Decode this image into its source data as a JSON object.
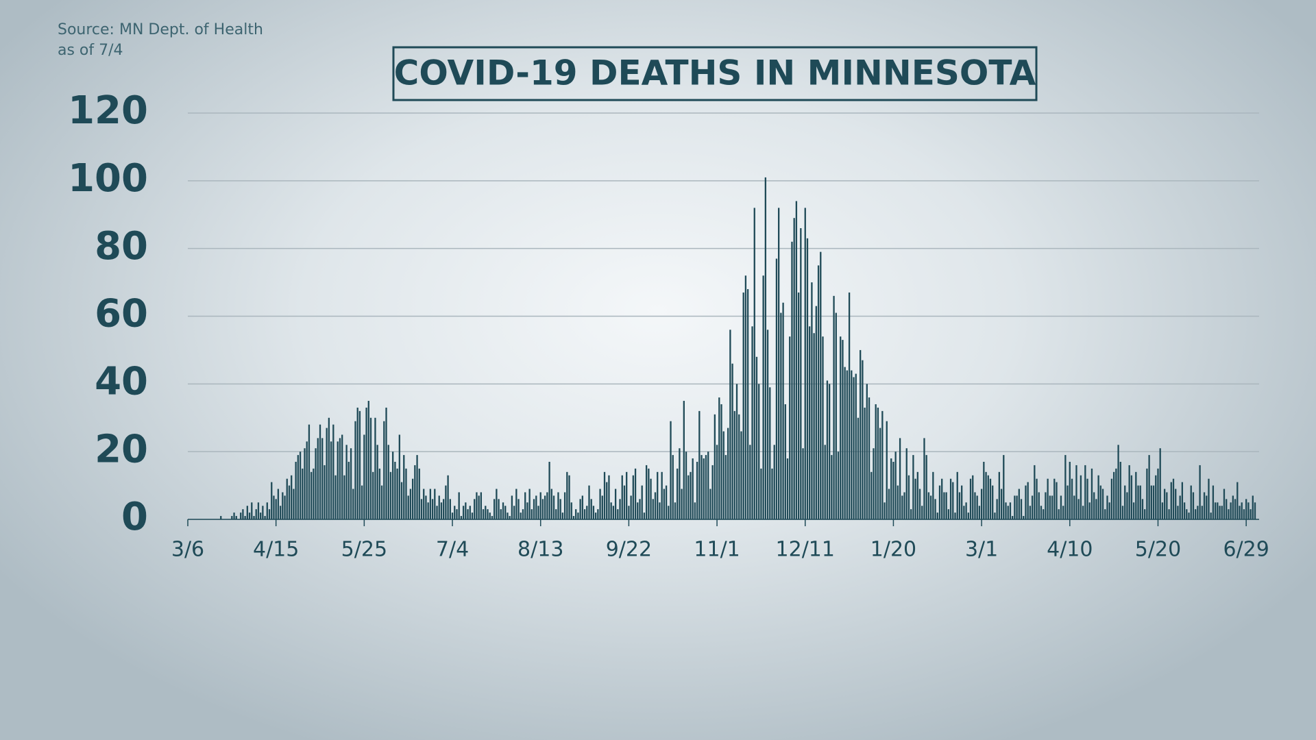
{
  "chart_data": {
    "type": "bar",
    "title": "COVID-19 DEATHS IN MINNESOTA",
    "source": "Source: MN Dept. of Health",
    "as_of": "as of 7/4",
    "color": "#1f4a57",
    "grid": true,
    "ylim": [
      0,
      120
    ],
    "yticks": [
      0,
      20,
      40,
      60,
      80,
      100,
      120
    ],
    "categories": [
      "3/6",
      null,
      null,
      null,
      null,
      null,
      null,
      null,
      null,
      null,
      null,
      null,
      null,
      null,
      null,
      null,
      null,
      null,
      null,
      null,
      null,
      null,
      null,
      null,
      null,
      null,
      null,
      null,
      null,
      null,
      null,
      null,
      null,
      null,
      null,
      null,
      null,
      null,
      null,
      null,
      "4/15",
      null,
      null,
      null,
      null,
      null,
      null,
      null,
      null,
      null,
      null,
      null,
      null,
      null,
      null,
      null,
      null,
      null,
      null,
      null,
      null,
      null,
      null,
      null,
      null,
      null,
      null,
      null,
      null,
      null,
      null,
      null,
      null,
      null,
      null,
      null,
      null,
      null,
      null,
      null,
      "5/25",
      null,
      null,
      null,
      null,
      null,
      null,
      null,
      null,
      null,
      null,
      null,
      null,
      null,
      null,
      null,
      null,
      null,
      null,
      null,
      null,
      null,
      null,
      null,
      null,
      null,
      null,
      null,
      null,
      null,
      null,
      null,
      null,
      null,
      null,
      null,
      null,
      null,
      null,
      null,
      "7/4",
      null,
      null,
      null,
      null,
      null,
      null,
      null,
      null,
      null,
      null,
      null,
      null,
      null,
      null,
      null,
      null,
      null,
      null,
      null,
      null,
      null,
      null,
      null,
      null,
      null,
      null,
      null,
      null,
      null,
      null,
      null,
      null,
      null,
      null,
      null,
      null,
      null,
      null,
      null,
      "8/13",
      null,
      null,
      null,
      null,
      null,
      null,
      null,
      null,
      null,
      null,
      null,
      null,
      null,
      null,
      null,
      null,
      null,
      null,
      null,
      null,
      null,
      null,
      null,
      null,
      null,
      null,
      null,
      null,
      null,
      null,
      null,
      null,
      null,
      null,
      null,
      null,
      null,
      null,
      null,
      "9/22",
      null,
      null,
      null,
      null,
      null,
      null,
      null,
      null,
      null,
      null,
      null,
      null,
      null,
      null,
      null,
      null,
      null,
      null,
      null,
      null,
      null,
      null,
      null,
      null,
      null,
      null,
      null,
      null,
      null,
      null,
      null,
      null,
      null,
      null,
      null,
      null,
      null,
      null,
      null,
      "11/1",
      null,
      null,
      null,
      null,
      null,
      null,
      null,
      null,
      null,
      null,
      null,
      null,
      null,
      null,
      null,
      null,
      null,
      null,
      null,
      null,
      null,
      null,
      null,
      null,
      null,
      null,
      null,
      null,
      null,
      null,
      null,
      null,
      null,
      null,
      null,
      null,
      null,
      null,
      null,
      "12/11",
      null,
      null,
      null,
      null,
      null,
      null,
      null,
      null,
      null,
      null,
      null,
      null,
      null,
      null,
      null,
      null,
      null,
      null,
      null,
      null,
      null,
      null,
      null,
      null,
      null,
      null,
      null,
      null,
      null,
      null,
      null,
      null,
      null,
      null,
      null,
      null,
      null,
      null,
      null,
      "1/20",
      null,
      null,
      null,
      null,
      null,
      null,
      null,
      null,
      null,
      null,
      null,
      null,
      null,
      null,
      null,
      null,
      null,
      null,
      null,
      null,
      null,
      null,
      null,
      null,
      null,
      null,
      null,
      null,
      null,
      null,
      null,
      null,
      null,
      null,
      null,
      null,
      null,
      null,
      null,
      "3/1",
      null,
      null,
      null,
      null,
      null,
      null,
      null,
      null,
      null,
      null,
      null,
      null,
      null,
      null,
      null,
      null,
      null,
      null,
      null,
      null,
      null,
      null,
      null,
      null,
      null,
      null,
      null,
      null,
      null,
      null,
      null,
      null,
      null,
      null,
      null,
      null,
      null,
      null,
      null,
      "4/10",
      null,
      null,
      null,
      null,
      null,
      null,
      null,
      null,
      null,
      null,
      null,
      null,
      null,
      null,
      null,
      null,
      null,
      null,
      null,
      null,
      null,
      null,
      null,
      null,
      null,
      null,
      null,
      null,
      null,
      null,
      null,
      null,
      null,
      null,
      null,
      null,
      null,
      null,
      null,
      "5/20",
      null,
      null,
      null,
      null,
      null,
      null,
      null,
      null,
      null,
      null,
      null,
      null,
      null,
      null,
      null,
      null,
      null,
      null,
      null,
      null,
      null,
      null,
      null,
      null,
      null,
      null,
      null,
      null,
      null,
      null,
      null,
      null,
      null,
      null,
      null,
      null,
      null,
      null,
      null,
      "6/29",
      null,
      null,
      null,
      null
    ],
    "values": [
      0,
      0,
      0,
      0,
      0,
      0,
      0,
      0,
      0,
      0,
      0,
      0,
      0,
      0,
      0,
      1,
      0,
      0,
      0,
      0,
      1,
      2,
      1,
      0,
      2,
      3,
      1,
      4,
      2,
      5,
      1,
      3,
      5,
      2,
      4,
      1,
      5,
      3,
      11,
      7,
      6,
      9,
      4,
      8,
      7,
      12,
      10,
      13,
      9,
      17,
      19,
      20,
      15,
      21,
      23,
      28,
      14,
      15,
      21,
      24,
      28,
      24,
      16,
      27,
      30,
      23,
      28,
      13,
      23,
      24,
      25,
      13,
      22,
      17,
      21,
      9,
      29,
      33,
      32,
      10,
      25,
      33,
      35,
      30,
      14,
      30,
      22,
      15,
      10,
      29,
      33,
      22,
      14,
      20,
      17,
      15,
      25,
      11,
      19,
      15,
      7,
      9,
      12,
      16,
      19,
      15,
      6,
      9,
      7,
      5,
      9,
      6,
      9,
      4,
      7,
      5,
      6,
      10,
      13,
      6,
      2,
      4,
      3,
      8,
      1,
      4,
      5,
      3,
      4,
      2,
      6,
      8,
      7,
      8,
      3,
      4,
      3,
      2,
      1,
      6,
      9,
      6,
      3,
      5,
      4,
      2,
      1,
      7,
      4,
      9,
      6,
      2,
      3,
      8,
      5,
      9,
      3,
      6,
      7,
      4,
      8,
      6,
      7,
      8,
      17,
      9,
      7,
      3,
      8,
      6,
      2,
      8,
      14,
      13,
      5,
      1,
      3,
      2,
      6,
      7,
      3,
      4,
      10,
      6,
      4,
      2,
      3,
      9,
      7,
      14,
      11,
      13,
      5,
      4,
      9,
      3,
      6,
      13,
      10,
      14,
      4,
      7,
      13,
      15,
      5,
      6,
      10,
      2,
      16,
      15,
      12,
      6,
      8,
      14,
      5,
      14,
      9,
      10,
      4,
      29,
      19,
      5,
      15,
      21,
      9,
      35,
      20,
      13,
      14,
      18,
      5,
      17,
      32,
      19,
      18,
      19,
      20,
      9,
      16,
      31,
      22,
      36,
      34,
      26,
      19,
      27,
      56,
      46,
      32,
      40,
      31,
      26,
      67,
      72,
      68,
      22,
      57,
      92,
      48,
      40,
      15,
      72,
      101,
      56,
      39,
      15,
      22,
      77,
      92,
      61,
      64,
      34,
      18,
      54,
      82,
      89,
      94,
      67,
      86,
      21,
      92,
      83,
      57,
      70,
      55,
      63,
      75,
      79,
      54,
      22,
      41,
      40,
      19,
      66,
      61,
      20,
      54,
      53,
      45,
      44,
      67,
      44,
      42,
      43,
      30,
      50,
      47,
      33,
      40,
      36,
      14,
      21,
      34,
      33,
      27,
      32,
      5,
      29,
      9,
      18,
      17,
      20,
      10,
      24,
      7,
      8,
      21,
      13,
      3,
      19,
      12,
      14,
      9,
      4,
      24,
      19,
      8,
      7,
      14,
      6,
      2,
      10,
      12,
      8,
      8,
      3,
      12,
      11,
      2,
      14,
      8,
      10,
      4,
      5,
      2,
      12,
      13,
      8,
      7,
      4,
      9,
      17,
      14,
      13,
      12,
      10,
      2,
      6,
      14,
      9,
      19,
      5,
      4,
      5,
      1,
      7,
      7,
      9,
      6,
      1,
      10,
      11,
      4,
      7,
      16,
      12,
      8,
      4,
      3,
      8,
      12,
      7,
      7,
      12,
      11,
      3,
      7,
      4,
      19,
      10,
      17,
      12,
      7,
      16,
      6,
      13,
      4,
      16,
      12,
      5,
      15,
      8,
      6,
      13,
      10,
      9,
      3,
      7,
      5,
      12,
      14,
      15,
      22,
      17,
      4,
      10,
      8,
      16,
      13,
      5,
      14,
      10,
      10,
      6,
      3,
      15,
      19,
      10,
      10,
      13,
      15,
      21,
      5,
      9,
      8,
      3,
      11,
      12,
      9,
      4,
      7,
      11,
      5,
      3,
      2,
      10,
      8,
      3,
      4,
      16,
      4,
      8,
      7,
      12,
      2,
      10,
      5,
      5,
      4,
      4,
      9,
      6,
      3,
      5,
      7,
      6,
      11,
      4,
      5,
      3,
      6,
      5,
      3,
      7,
      5
    ]
  }
}
